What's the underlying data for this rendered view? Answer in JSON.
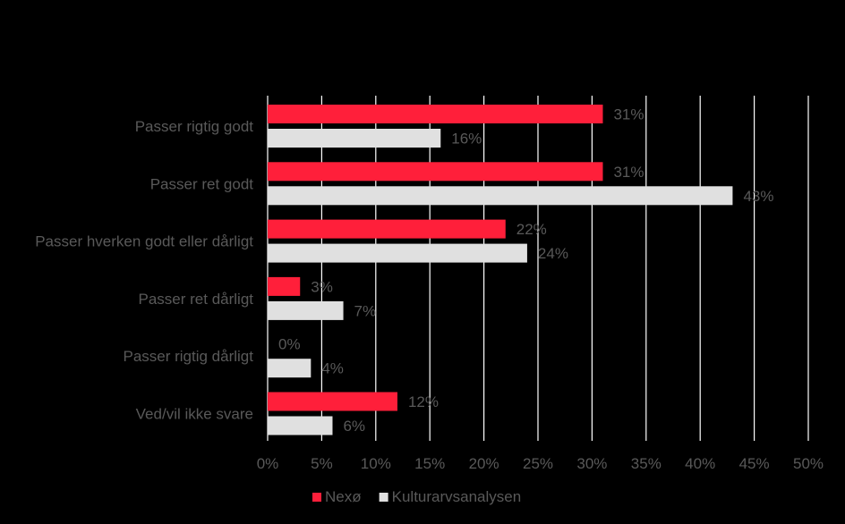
{
  "chart_data": {
    "type": "bar",
    "orientation": "horizontal",
    "categories": [
      "Passer rigtig godt",
      "Passer ret godt",
      "Passer hverken godt eller dårligt",
      "Passer ret dårligt",
      "Passer rigtig dårligt",
      "Ved/vil ikke svare"
    ],
    "series": [
      {
        "name": "Nexø",
        "color": "#FF1F3A",
        "values": [
          31,
          31,
          22,
          3,
          0,
          12
        ]
      },
      {
        "name": "Kulturarvsanalysen",
        "color": "#E0E0E0",
        "values": [
          16,
          43,
          24,
          7,
          4,
          6
        ]
      }
    ],
    "xlim": [
      0,
      50
    ],
    "xticks": [
      "0%",
      "5%",
      "10%",
      "15%",
      "20%",
      "25%",
      "30%",
      "35%",
      "40%",
      "45%",
      "50%"
    ],
    "value_suffix": "%",
    "grid": "vertical",
    "legend_position": "bottom",
    "background": "#000000",
    "text_color": "#595959",
    "grid_color": "#FFFFFF"
  }
}
